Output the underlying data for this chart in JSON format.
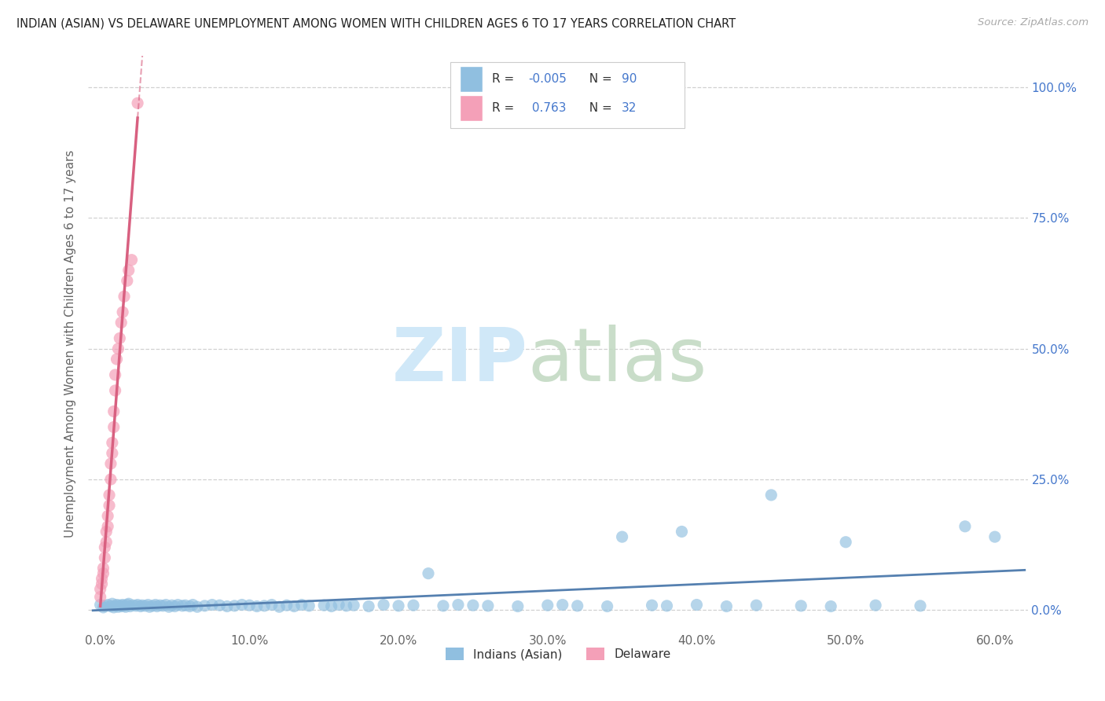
{
  "title": "INDIAN (ASIAN) VS DELAWARE UNEMPLOYMENT AMONG WOMEN WITH CHILDREN AGES 6 TO 17 YEARS CORRELATION CHART",
  "source": "Source: ZipAtlas.com",
  "ylabel": "Unemployment Among Women with Children Ages 6 to 17 years",
  "R_blue": "-0.005",
  "N_blue": "90",
  "R_pink": "0.763",
  "N_pink": "32",
  "legend_blue_label": "Indians (Asian)",
  "legend_pink_label": "Delaware",
  "blue_scatter_color": "#90bfe0",
  "pink_scatter_color": "#f4a0b8",
  "blue_line_color": "#5580b0",
  "pink_line_color": "#d86080",
  "legend_R_color": "#3366cc",
  "legend_label_color": "#333333",
  "background_color": "#ffffff",
  "grid_color": "#cccccc",
  "title_color": "#222222",
  "axis_label_color": "#666666",
  "source_color": "#aaaaaa",
  "right_tick_color": "#4477cc",
  "watermark_zip_color": "#d0e8f8",
  "watermark_atlas_color": "#c0d8c0",
  "blue_x": [
    0.0,
    0.002,
    0.003,
    0.005,
    0.007,
    0.008,
    0.009,
    0.01,
    0.011,
    0.012,
    0.013,
    0.014,
    0.015,
    0.016,
    0.017,
    0.018,
    0.019,
    0.02,
    0.022,
    0.024,
    0.025,
    0.027,
    0.028,
    0.03,
    0.032,
    0.033,
    0.035,
    0.037,
    0.038,
    0.04,
    0.042,
    0.044,
    0.046,
    0.048,
    0.05,
    0.052,
    0.055,
    0.057,
    0.06,
    0.062,
    0.065,
    0.07,
    0.075,
    0.08,
    0.085,
    0.09,
    0.095,
    0.1,
    0.105,
    0.11,
    0.115,
    0.12,
    0.125,
    0.13,
    0.135,
    0.14,
    0.15,
    0.155,
    0.16,
    0.165,
    0.17,
    0.18,
    0.19,
    0.2,
    0.21,
    0.22,
    0.23,
    0.24,
    0.25,
    0.26,
    0.28,
    0.3,
    0.31,
    0.32,
    0.34,
    0.35,
    0.37,
    0.38,
    0.39,
    0.4,
    0.42,
    0.44,
    0.45,
    0.47,
    0.49,
    0.5,
    0.52,
    0.55,
    0.58,
    0.6
  ],
  "blue_y": [
    0.01,
    0.005,
    0.008,
    0.01,
    0.007,
    0.012,
    0.005,
    0.008,
    0.01,
    0.006,
    0.009,
    0.007,
    0.01,
    0.008,
    0.006,
    0.01,
    0.012,
    0.007,
    0.009,
    0.008,
    0.01,
    0.007,
    0.009,
    0.008,
    0.01,
    0.006,
    0.008,
    0.01,
    0.007,
    0.009,
    0.008,
    0.01,
    0.006,
    0.009,
    0.007,
    0.01,
    0.008,
    0.009,
    0.007,
    0.01,
    0.006,
    0.008,
    0.01,
    0.009,
    0.007,
    0.008,
    0.01,
    0.009,
    0.007,
    0.008,
    0.01,
    0.006,
    0.009,
    0.007,
    0.01,
    0.008,
    0.009,
    0.007,
    0.01,
    0.008,
    0.009,
    0.007,
    0.01,
    0.008,
    0.009,
    0.07,
    0.008,
    0.01,
    0.009,
    0.008,
    0.007,
    0.009,
    0.01,
    0.008,
    0.007,
    0.14,
    0.009,
    0.008,
    0.15,
    0.01,
    0.007,
    0.009,
    0.22,
    0.008,
    0.007,
    0.13,
    0.009,
    0.008,
    0.16,
    0.14
  ],
  "pink_x": [
    0.0,
    0.0,
    0.001,
    0.001,
    0.002,
    0.002,
    0.003,
    0.003,
    0.004,
    0.004,
    0.005,
    0.005,
    0.006,
    0.006,
    0.007,
    0.007,
    0.008,
    0.008,
    0.009,
    0.009,
    0.01,
    0.01,
    0.011,
    0.012,
    0.013,
    0.014,
    0.015,
    0.016,
    0.018,
    0.019,
    0.021,
    0.025
  ],
  "pink_y": [
    0.025,
    0.04,
    0.05,
    0.06,
    0.07,
    0.08,
    0.1,
    0.12,
    0.13,
    0.15,
    0.16,
    0.18,
    0.2,
    0.22,
    0.25,
    0.28,
    0.3,
    0.32,
    0.35,
    0.38,
    0.42,
    0.45,
    0.48,
    0.5,
    0.52,
    0.55,
    0.57,
    0.6,
    0.63,
    0.65,
    0.67,
    0.97
  ]
}
